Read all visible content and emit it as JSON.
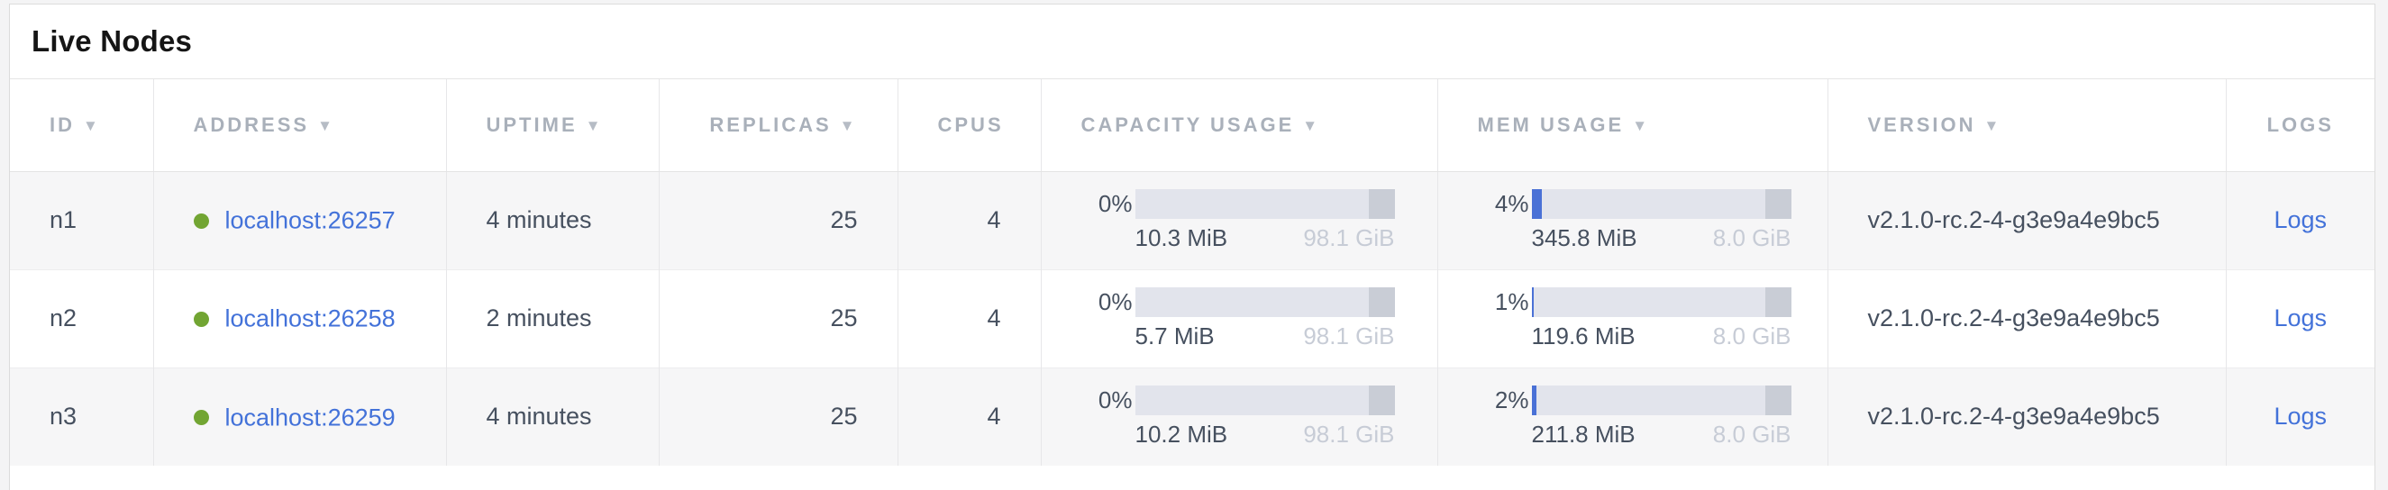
{
  "panel": {
    "title": "Live Nodes"
  },
  "colors": {
    "link_blue": "#4372d9",
    "live_green": "#72a533",
    "bar_fill_blue": "#4a71d6",
    "bar_track": "#e2e4ec",
    "bar_end_segment": "#c9cdd6"
  },
  "table": {
    "columns": [
      {
        "key": "id",
        "label": "ID",
        "sortable": true
      },
      {
        "key": "address",
        "label": "ADDRESS",
        "sortable": true
      },
      {
        "key": "uptime",
        "label": "UPTIME",
        "sortable": true
      },
      {
        "key": "replicas",
        "label": "REPLICAS",
        "sortable": true
      },
      {
        "key": "cpus",
        "label": "CPUS",
        "sortable": false
      },
      {
        "key": "capacity",
        "label": "CAPACITY USAGE",
        "sortable": true
      },
      {
        "key": "mem",
        "label": "MEM USAGE",
        "sortable": true
      },
      {
        "key": "version",
        "label": "VERSION",
        "sortable": true
      },
      {
        "key": "logs",
        "label": "LOGS",
        "sortable": false
      }
    ],
    "sort_icon": "▼",
    "rows": [
      {
        "id": "n1",
        "status": "live",
        "address": "localhost:26257",
        "uptime": "4 minutes",
        "replicas": "25",
        "cpus": "4",
        "capacity": {
          "percent": "0%",
          "percent_value": 0,
          "used": "10.3 MiB",
          "total": "98.1 GiB"
        },
        "mem": {
          "percent": "4%",
          "percent_value": 4,
          "used": "345.8 MiB",
          "total": "8.0 GiB"
        },
        "version": "v2.1.0-rc.2-4-g3e9a4e9bc5",
        "logs_label": "Logs"
      },
      {
        "id": "n2",
        "status": "live",
        "address": "localhost:26258",
        "uptime": "2 minutes",
        "replicas": "25",
        "cpus": "4",
        "capacity": {
          "percent": "0%",
          "percent_value": 0,
          "used": "5.7 MiB",
          "total": "98.1 GiB"
        },
        "mem": {
          "percent": "1%",
          "percent_value": 1,
          "used": "119.6 MiB",
          "total": "8.0 GiB"
        },
        "version": "v2.1.0-rc.2-4-g3e9a4e9bc5",
        "logs_label": "Logs"
      },
      {
        "id": "n3",
        "status": "live",
        "address": "localhost:26259",
        "uptime": "4 minutes",
        "replicas": "25",
        "cpus": "4",
        "capacity": {
          "percent": "0%",
          "percent_value": 0,
          "used": "10.2 MiB",
          "total": "98.1 GiB"
        },
        "mem": {
          "percent": "2%",
          "percent_value": 2,
          "used": "211.8 MiB",
          "total": "8.0 GiB"
        },
        "version": "v2.1.0-rc.2-4-g3e9a4e9bc5",
        "logs_label": "Logs"
      }
    ]
  }
}
